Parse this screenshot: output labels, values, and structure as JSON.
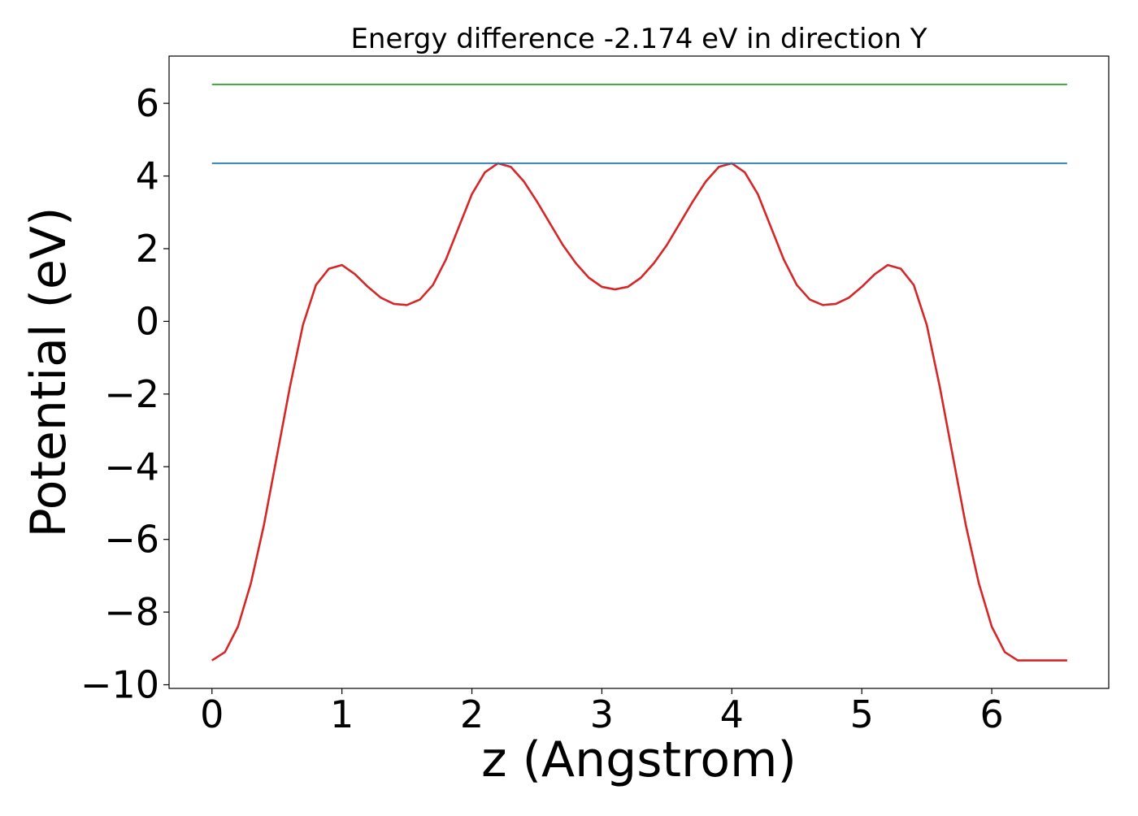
{
  "chart_data": {
    "type": "line",
    "title": "Energy difference -2.174 eV in direction Y",
    "xlabel": "z (Angstrom)",
    "ylabel": "Potential (eV)",
    "xlim": [
      -0.33,
      6.9
    ],
    "ylim": [
      -10.1,
      7.3
    ],
    "x_ticks": [
      0,
      1,
      2,
      3,
      4,
      5,
      6
    ],
    "y_ticks": [
      -10,
      -8,
      -6,
      -4,
      -2,
      0,
      2,
      4,
      6
    ],
    "x_tick_labels": [
      "0",
      "1",
      "2",
      "3",
      "4",
      "5",
      "6"
    ],
    "y_tick_labels": [
      "−10",
      "−8",
      "−6",
      "−4",
      "−2",
      "0",
      "2",
      "4",
      "6"
    ],
    "grid": false,
    "series": [
      {
        "color": "#d62728",
        "x": [
          0,
          0.1,
          0.2,
          0.3,
          0.4,
          0.5,
          0.6,
          0.7,
          0.8,
          0.9,
          1.0,
          1.1,
          1.2,
          1.3,
          1.4,
          1.5,
          1.6,
          1.7,
          1.8,
          1.9,
          2.0,
          2.1,
          2.2,
          2.3,
          2.4,
          2.5,
          2.6,
          2.7,
          2.8,
          2.9,
          3.0,
          3.1,
          3.2,
          3.3,
          3.4,
          3.5,
          3.6,
          3.7,
          3.8,
          3.9,
          4.0,
          4.1,
          4.2,
          4.3,
          4.4,
          4.5,
          4.6,
          4.7,
          4.8,
          4.9,
          5.0,
          5.1,
          5.2,
          5.3,
          5.4,
          5.5,
          5.6,
          5.7,
          5.8,
          5.9,
          6.0,
          6.1,
          6.2,
          6.3,
          6.4,
          6.5,
          6.58
        ],
        "values": [
          -9.33,
          -9.1,
          -8.4,
          -7.2,
          -5.6,
          -3.7,
          -1.8,
          -0.1,
          1.0,
          1.45,
          1.55,
          1.3,
          0.95,
          0.65,
          0.48,
          0.45,
          0.6,
          1.0,
          1.7,
          2.6,
          3.5,
          4.1,
          4.35,
          4.25,
          3.85,
          3.3,
          2.7,
          2.1,
          1.6,
          1.2,
          0.95,
          0.88,
          0.95,
          1.2,
          1.6,
          2.1,
          2.7,
          3.3,
          3.85,
          4.25,
          4.35,
          4.1,
          3.5,
          2.6,
          1.7,
          1.0,
          0.6,
          0.45,
          0.48,
          0.65,
          0.95,
          1.3,
          1.55,
          1.45,
          1.0,
          -0.1,
          -1.8,
          -3.7,
          -5.6,
          -7.2,
          -8.4,
          -9.1,
          -9.33,
          -9.33,
          -9.33,
          -9.33,
          -9.33
        ]
      },
      {
        "color": "#1f77b4",
        "x": [
          0,
          6.58
        ],
        "values": [
          4.35,
          4.35
        ]
      },
      {
        "color": "#2ca02c",
        "x": [
          0,
          6.58
        ],
        "values": [
          6.52,
          6.52
        ]
      }
    ]
  }
}
